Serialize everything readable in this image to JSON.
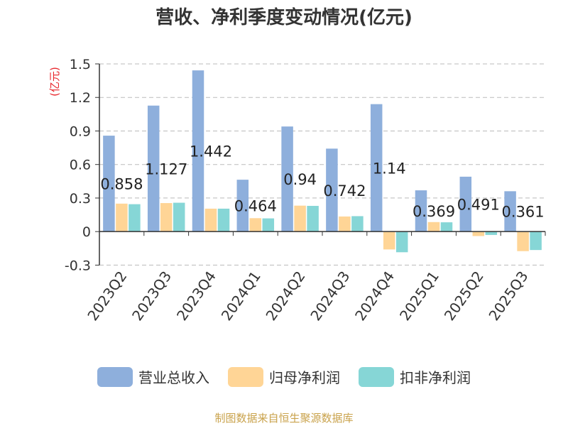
{
  "title": "营收、净利季度变动情况(亿元)",
  "source": "制图数据来自恒生聚源数据库",
  "colors": {
    "revenue": "#8eafdc",
    "net_profit": "#ffd596",
    "deducted_profit": "#86d6d6",
    "unit_label": "#e8262b",
    "grid": "#bbbbbb",
    "text": "#333333"
  },
  "chart_data": {
    "type": "bar",
    "title": "营收、净利季度变动情况(亿元)",
    "ylabel": "(亿元)",
    "ylim": [
      -0.3,
      1.5
    ],
    "yticks": [
      -0.3,
      0,
      0.3,
      0.6,
      0.9,
      1.2,
      1.5
    ],
    "ytick_labels": [
      "-0.3",
      "0",
      "0.3",
      "0.6",
      "0.9",
      "1.2",
      "1.5"
    ],
    "grid": true,
    "legend_position": "bottom",
    "categories": [
      "2023Q2",
      "2023Q3",
      "2023Q4",
      "2024Q1",
      "2024Q2",
      "2024Q3",
      "2024Q4",
      "2025Q1",
      "2025Q2",
      "2025Q3"
    ],
    "series": [
      {
        "name": "营业总收入",
        "values": [
          0.858,
          1.127,
          1.442,
          0.464,
          0.94,
          0.742,
          1.14,
          0.369,
          0.491,
          0.361
        ],
        "data_labels": [
          "0.858",
          "1.127",
          "1.442",
          "0.464",
          "0.94",
          "0.742",
          "1.14",
          "0.369",
          "0.491",
          "0.361"
        ]
      },
      {
        "name": "归母净利润",
        "values": [
          0.25,
          0.255,
          0.205,
          0.12,
          0.232,
          0.135,
          -0.16,
          0.085,
          -0.04,
          -0.175
        ]
      },
      {
        "name": "扣非净利润",
        "values": [
          0.245,
          0.258,
          0.205,
          0.118,
          0.23,
          0.138,
          -0.185,
          0.083,
          -0.03,
          -0.165
        ]
      }
    ]
  }
}
